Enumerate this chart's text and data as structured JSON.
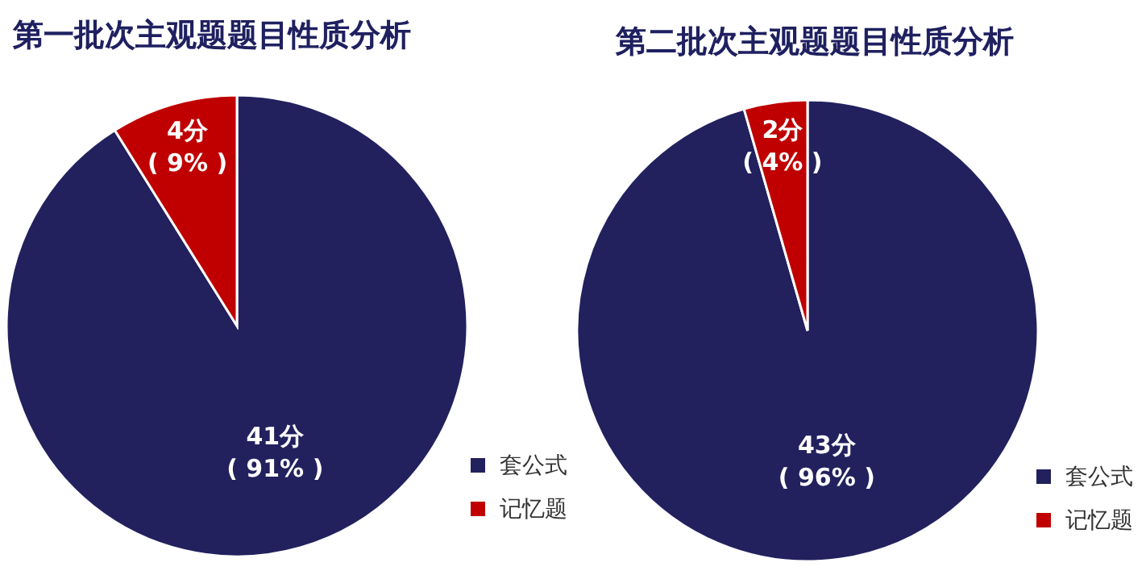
{
  "chart_data": [
    {
      "type": "pie",
      "title": "第一批次主观题题目性质分析",
      "categories": [
        "套公式",
        "记忆题"
      ],
      "values": [
        41,
        4
      ],
      "colors": [
        "#22215e",
        "#c00000"
      ],
      "value_labels": [
        "41分\n( 91% )",
        "4分\n( 9% )"
      ],
      "legend": "bottom right"
    },
    {
      "type": "pie",
      "title": "第二批次主观题题目性质分析",
      "categories": [
        "套公式",
        "记忆题"
      ],
      "values": [
        43,
        2
      ],
      "colors": [
        "#22215e",
        "#c00000"
      ],
      "value_labels": [
        "43分\n( 96% )",
        "2分\n( 4% )"
      ],
      "legend": "bottom right"
    }
  ]
}
